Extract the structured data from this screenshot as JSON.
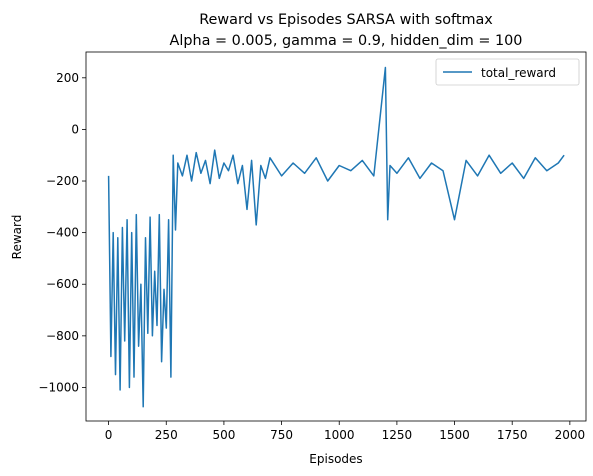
{
  "chart_data": {
    "type": "line",
    "title_line1": "Reward vs Episodes SARSA with softmax",
    "title_line2": "Alpha = 0.005, gamma = 0.9, hidden_dim = 100",
    "xlabel": "Episodes",
    "ylabel": "Reward",
    "xlim": [
      -98,
      2070
    ],
    "ylim": [
      -1130,
      300
    ],
    "x_ticks": [
      0,
      250,
      500,
      750,
      1000,
      1250,
      1500,
      1750,
      2000
    ],
    "x_tick_labels": [
      "0",
      "250",
      "500",
      "750",
      "1000",
      "1250",
      "1500",
      "1750",
      "2000"
    ],
    "y_ticks": [
      200,
      0,
      -200,
      -400,
      -600,
      -800,
      -1000
    ],
    "y_tick_labels": [
      "200",
      "0",
      "−200",
      "−400",
      "−600",
      "−800",
      "−1000"
    ],
    "grid": false,
    "legend_position": "top-right",
    "line_color": "#1f77b4",
    "series": [
      {
        "name": "total_reward",
        "color": "#1f77b4",
        "x": [
          0,
          10,
          20,
          30,
          40,
          50,
          60,
          70,
          80,
          90,
          100,
          110,
          120,
          130,
          140,
          150,
          160,
          170,
          180,
          190,
          200,
          210,
          220,
          230,
          240,
          250,
          260,
          270,
          280,
          290,
          300,
          320,
          340,
          360,
          380,
          400,
          420,
          440,
          460,
          480,
          500,
          520,
          540,
          560,
          580,
          600,
          620,
          640,
          660,
          680,
          700,
          750,
          800,
          850,
          900,
          950,
          1000,
          1050,
          1100,
          1150,
          1200,
          1210,
          1220,
          1250,
          1300,
          1350,
          1400,
          1450,
          1500,
          1550,
          1600,
          1650,
          1700,
          1750,
          1800,
          1850,
          1900,
          1950,
          1975
        ],
        "values": [
          -180,
          -880,
          -400,
          -950,
          -420,
          -1010,
          -380,
          -820,
          -350,
          -1000,
          -400,
          -960,
          -330,
          -840,
          -600,
          -1075,
          -420,
          -790,
          -340,
          -800,
          -550,
          -760,
          -330,
          -900,
          -620,
          -770,
          -350,
          -960,
          -100,
          -390,
          -130,
          -180,
          -100,
          -200,
          -90,
          -170,
          -120,
          -210,
          -80,
          -190,
          -130,
          -160,
          -100,
          -210,
          -140,
          -310,
          -120,
          -370,
          -140,
          -190,
          -110,
          -180,
          -130,
          -170,
          -110,
          -200,
          -140,
          -160,
          -120,
          -180,
          240,
          -350,
          -140,
          -170,
          -110,
          -190,
          -130,
          -160,
          -350,
          -120,
          -180,
          -100,
          -170,
          -130,
          -190,
          -110,
          -160,
          -130,
          -100
        ]
      }
    ]
  }
}
